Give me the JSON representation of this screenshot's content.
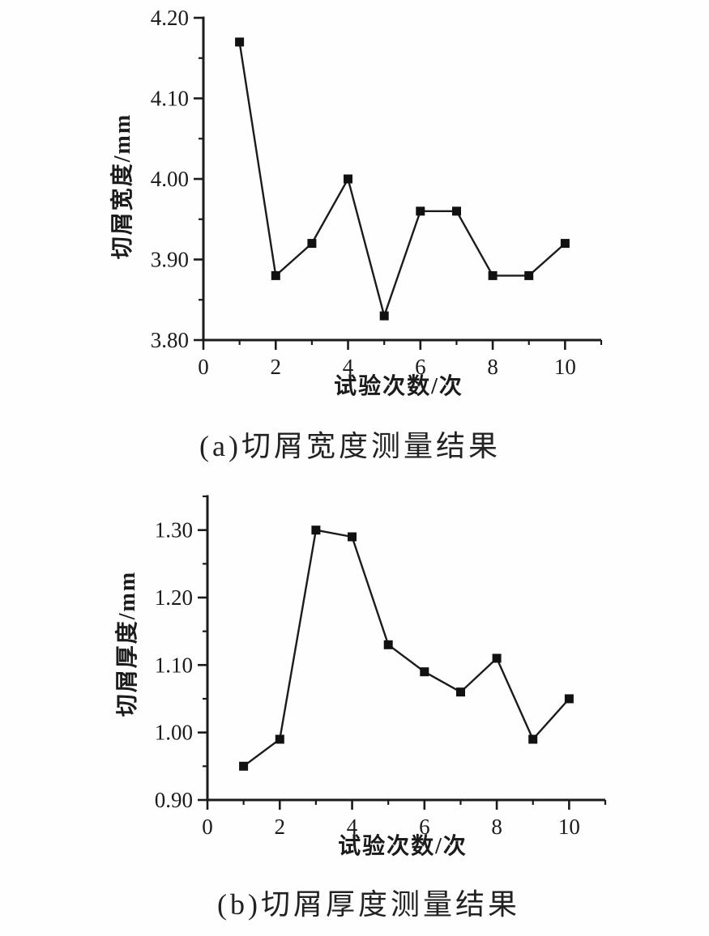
{
  "figure": {
    "background": "#fefefe",
    "ink_color": "#1b1b1b",
    "marker_color": "#111111"
  },
  "chart_data": [
    {
      "id": "a",
      "type": "line",
      "title": "",
      "xlabel": "试验次数/次",
      "ylabel": "切屑宽度/mm",
      "caption": "(a)切屑宽度测量结果",
      "x": [
        1,
        2,
        3,
        4,
        5,
        6,
        7,
        8,
        9,
        10
      ],
      "values": [
        4.17,
        3.88,
        3.92,
        4.0,
        3.83,
        3.96,
        3.96,
        3.88,
        3.88,
        3.92
      ],
      "xlim": [
        0,
        11
      ],
      "ylim": [
        3.8,
        4.2
      ],
      "x_major_ticks": [
        0,
        2,
        4,
        6,
        8,
        10
      ],
      "x_minor_ticks": [
        1,
        3,
        5,
        7,
        9,
        11
      ],
      "y_major_ticks": [
        3.8,
        3.9,
        4.0,
        4.1,
        4.2
      ],
      "y_minor_ticks": [
        3.85,
        3.95,
        4.05,
        4.15
      ],
      "y_tick_decimals": 2,
      "marker": "square",
      "grid": false,
      "legend": "none"
    },
    {
      "id": "b",
      "type": "line",
      "title": "",
      "xlabel": "试验次数/次",
      "ylabel": "切屑厚度/mm",
      "caption": "(b)切屑厚度测量结果",
      "x": [
        1,
        2,
        3,
        4,
        5,
        6,
        7,
        8,
        9,
        10
      ],
      "values": [
        0.95,
        0.99,
        1.3,
        1.29,
        1.13,
        1.09,
        1.06,
        1.11,
        0.99,
        1.05
      ],
      "xlim": [
        0,
        11
      ],
      "ylim": [
        0.9,
        1.35
      ],
      "x_major_ticks": [
        0,
        2,
        4,
        6,
        8,
        10
      ],
      "x_minor_ticks": [
        1,
        3,
        5,
        7,
        9,
        11
      ],
      "y_major_ticks": [
        0.9,
        1.0,
        1.1,
        1.2,
        1.3
      ],
      "y_minor_ticks": [
        0.95,
        1.05,
        1.15,
        1.25,
        1.35
      ],
      "y_tick_decimals": 2,
      "marker": "square",
      "grid": false,
      "legend": "none"
    }
  ]
}
